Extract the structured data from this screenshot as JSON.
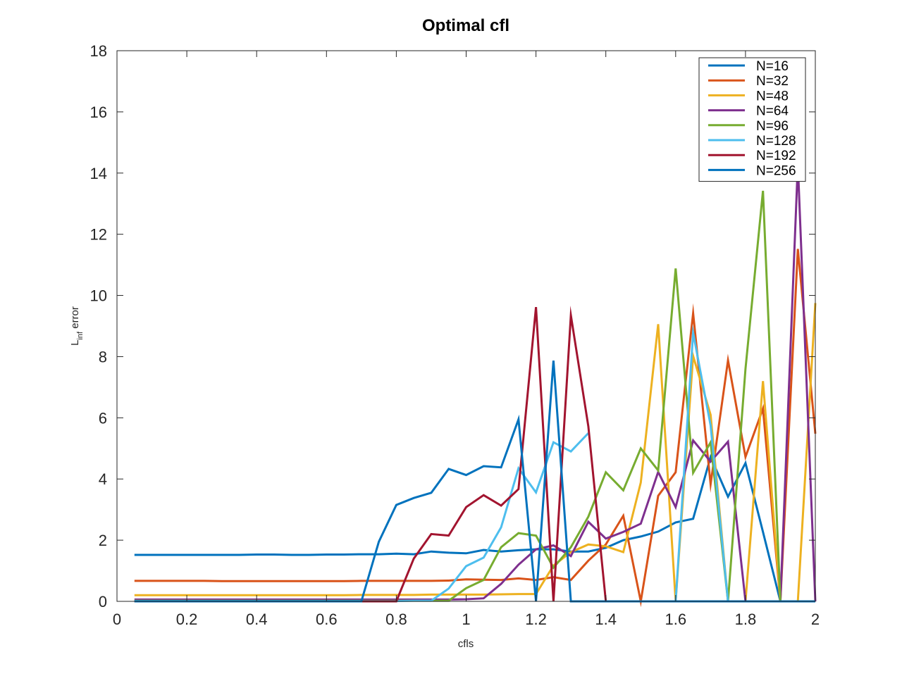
{
  "chart_data": {
    "type": "line",
    "title": "Optimal cfl",
    "xlabel": "cfls",
    "ylabel_main": "L",
    "ylabel_sub": "inf",
    "ylabel_rest": " error",
    "xlim": [
      0,
      2
    ],
    "ylim": [
      0,
      18
    ],
    "xticks": [
      "0",
      "0.2",
      "0.4",
      "0.6",
      "0.8",
      "1",
      "1.2",
      "1.4",
      "1.6",
      "1.8",
      "2"
    ],
    "yticks": [
      "0",
      "2",
      "4",
      "6",
      "8",
      "10",
      "12",
      "14",
      "16",
      "18"
    ],
    "grid": false,
    "legend_position": "top-right",
    "x": [
      0.05,
      0.1,
      0.15,
      0.2,
      0.25,
      0.3,
      0.35,
      0.4,
      0.45,
      0.5,
      0.55,
      0.6,
      0.65,
      0.7,
      0.75,
      0.8,
      0.85,
      0.9,
      0.95,
      1.0,
      1.05,
      1.1,
      1.15,
      1.2,
      1.25,
      1.3,
      1.35,
      1.4,
      1.45,
      1.5,
      1.55,
      1.6,
      1.65,
      1.7,
      1.75,
      1.8,
      1.85,
      1.9,
      1.95,
      2.0
    ],
    "series": [
      {
        "name": "N=16",
        "color": "#0072BD",
        "values": [
          1.52,
          1.52,
          1.52,
          1.52,
          1.52,
          1.52,
          1.52,
          1.53,
          1.53,
          1.52,
          1.52,
          1.53,
          1.53,
          1.54,
          1.54,
          1.56,
          1.54,
          1.63,
          1.59,
          1.57,
          1.68,
          1.63,
          1.67,
          1.7,
          1.7,
          1.63,
          1.63,
          1.75,
          2.0,
          2.12,
          2.28,
          2.58,
          2.7,
          4.72,
          3.42,
          4.52,
          2.27,
          0.0,
          0.0,
          0.0
        ]
      },
      {
        "name": "N=32",
        "color": "#D95319",
        "values": [
          0.67,
          0.67,
          0.67,
          0.67,
          0.67,
          0.66,
          0.66,
          0.66,
          0.66,
          0.66,
          0.66,
          0.66,
          0.66,
          0.67,
          0.67,
          0.67,
          0.67,
          0.67,
          0.68,
          0.72,
          0.71,
          0.7,
          0.75,
          0.7,
          0.79,
          0.7,
          1.33,
          1.86,
          2.8,
          0.0,
          3.45,
          4.22,
          9.42,
          3.83,
          7.88,
          4.72,
          6.3,
          0.0,
          11.52,
          5.48
        ]
      },
      {
        "name": "N=48",
        "color": "#EDB120",
        "values": [
          0.2,
          0.2,
          0.2,
          0.2,
          0.2,
          0.2,
          0.2,
          0.2,
          0.2,
          0.2,
          0.2,
          0.2,
          0.2,
          0.21,
          0.21,
          0.21,
          0.21,
          0.22,
          0.22,
          0.22,
          0.22,
          0.23,
          0.24,
          0.24,
          1.17,
          1.61,
          1.86,
          1.8,
          1.61,
          3.88,
          9.06,
          0.0,
          8.02,
          6.1,
          0.0,
          0.0,
          7.2,
          0.0,
          0.0,
          9.75
        ]
      },
      {
        "name": "N=64",
        "color": "#7E2F8E",
        "values": [
          0.06,
          0.06,
          0.06,
          0.06,
          0.06,
          0.06,
          0.06,
          0.06,
          0.06,
          0.06,
          0.06,
          0.06,
          0.06,
          0.06,
          0.06,
          0.06,
          0.06,
          0.06,
          0.06,
          0.07,
          0.1,
          0.57,
          1.2,
          1.7,
          1.83,
          1.48,
          2.6,
          2.05,
          2.27,
          2.54,
          4.23,
          3.08,
          5.26,
          4.57,
          5.22,
          0.0,
          0.0,
          0.0,
          14.3,
          0.0
        ]
      },
      {
        "name": "N=96",
        "color": "#77AC30",
        "values": [
          0.02,
          0.02,
          0.02,
          0.02,
          0.02,
          0.02,
          0.02,
          0.02,
          0.02,
          0.02,
          0.02,
          0.02,
          0.02,
          0.02,
          0.02,
          0.02,
          0.02,
          0.02,
          0.02,
          0.43,
          0.7,
          1.77,
          2.23,
          2.15,
          1.1,
          1.77,
          2.77,
          4.22,
          3.63,
          5.0,
          4.28,
          10.88,
          4.2,
          5.2,
          0.0,
          7.6,
          13.42,
          0.0,
          0.0,
          0.0
        ]
      },
      {
        "name": "N=128",
        "color": "#4DBEEE",
        "values": [
          0.01,
          0.01,
          0.01,
          0.01,
          0.01,
          0.01,
          0.01,
          0.01,
          0.01,
          0.01,
          0.01,
          0.01,
          0.01,
          0.01,
          0.01,
          0.01,
          0.02,
          0.02,
          0.42,
          1.15,
          1.43,
          2.42,
          4.35,
          3.56,
          5.2,
          4.9,
          5.5,
          null,
          null,
          null,
          null,
          0.0,
          8.78,
          5.75,
          0.0,
          null,
          null,
          null,
          null,
          null
        ]
      },
      {
        "name": "N=192",
        "color": "#A2142F",
        "values": [
          0.0,
          0.0,
          0.0,
          0.0,
          0.0,
          0.0,
          0.0,
          0.0,
          0.0,
          0.0,
          0.0,
          0.0,
          0.0,
          0.0,
          0.0,
          0.0,
          1.4,
          2.2,
          2.15,
          3.08,
          3.47,
          3.13,
          3.67,
          9.62,
          0.0,
          9.35,
          5.72,
          0.0,
          null,
          null,
          null,
          null,
          null,
          null,
          null,
          null,
          null,
          null,
          null,
          null
        ]
      },
      {
        "name": "N=256",
        "color": "#0072BD",
        "values": [
          0.0,
          0.0,
          0.0,
          0.0,
          0.0,
          0.0,
          0.0,
          0.0,
          0.0,
          0.0,
          0.0,
          0.0,
          0.0,
          0.0,
          1.95,
          3.15,
          3.38,
          3.55,
          4.33,
          4.13,
          4.42,
          4.38,
          5.95,
          0.0,
          7.87,
          0.0,
          0.0,
          0.0,
          0.0,
          0.0,
          0.0,
          0.0,
          0.0,
          0.0,
          0.0,
          0.0,
          0.0,
          0.0,
          0.0,
          0.0
        ]
      }
    ]
  }
}
